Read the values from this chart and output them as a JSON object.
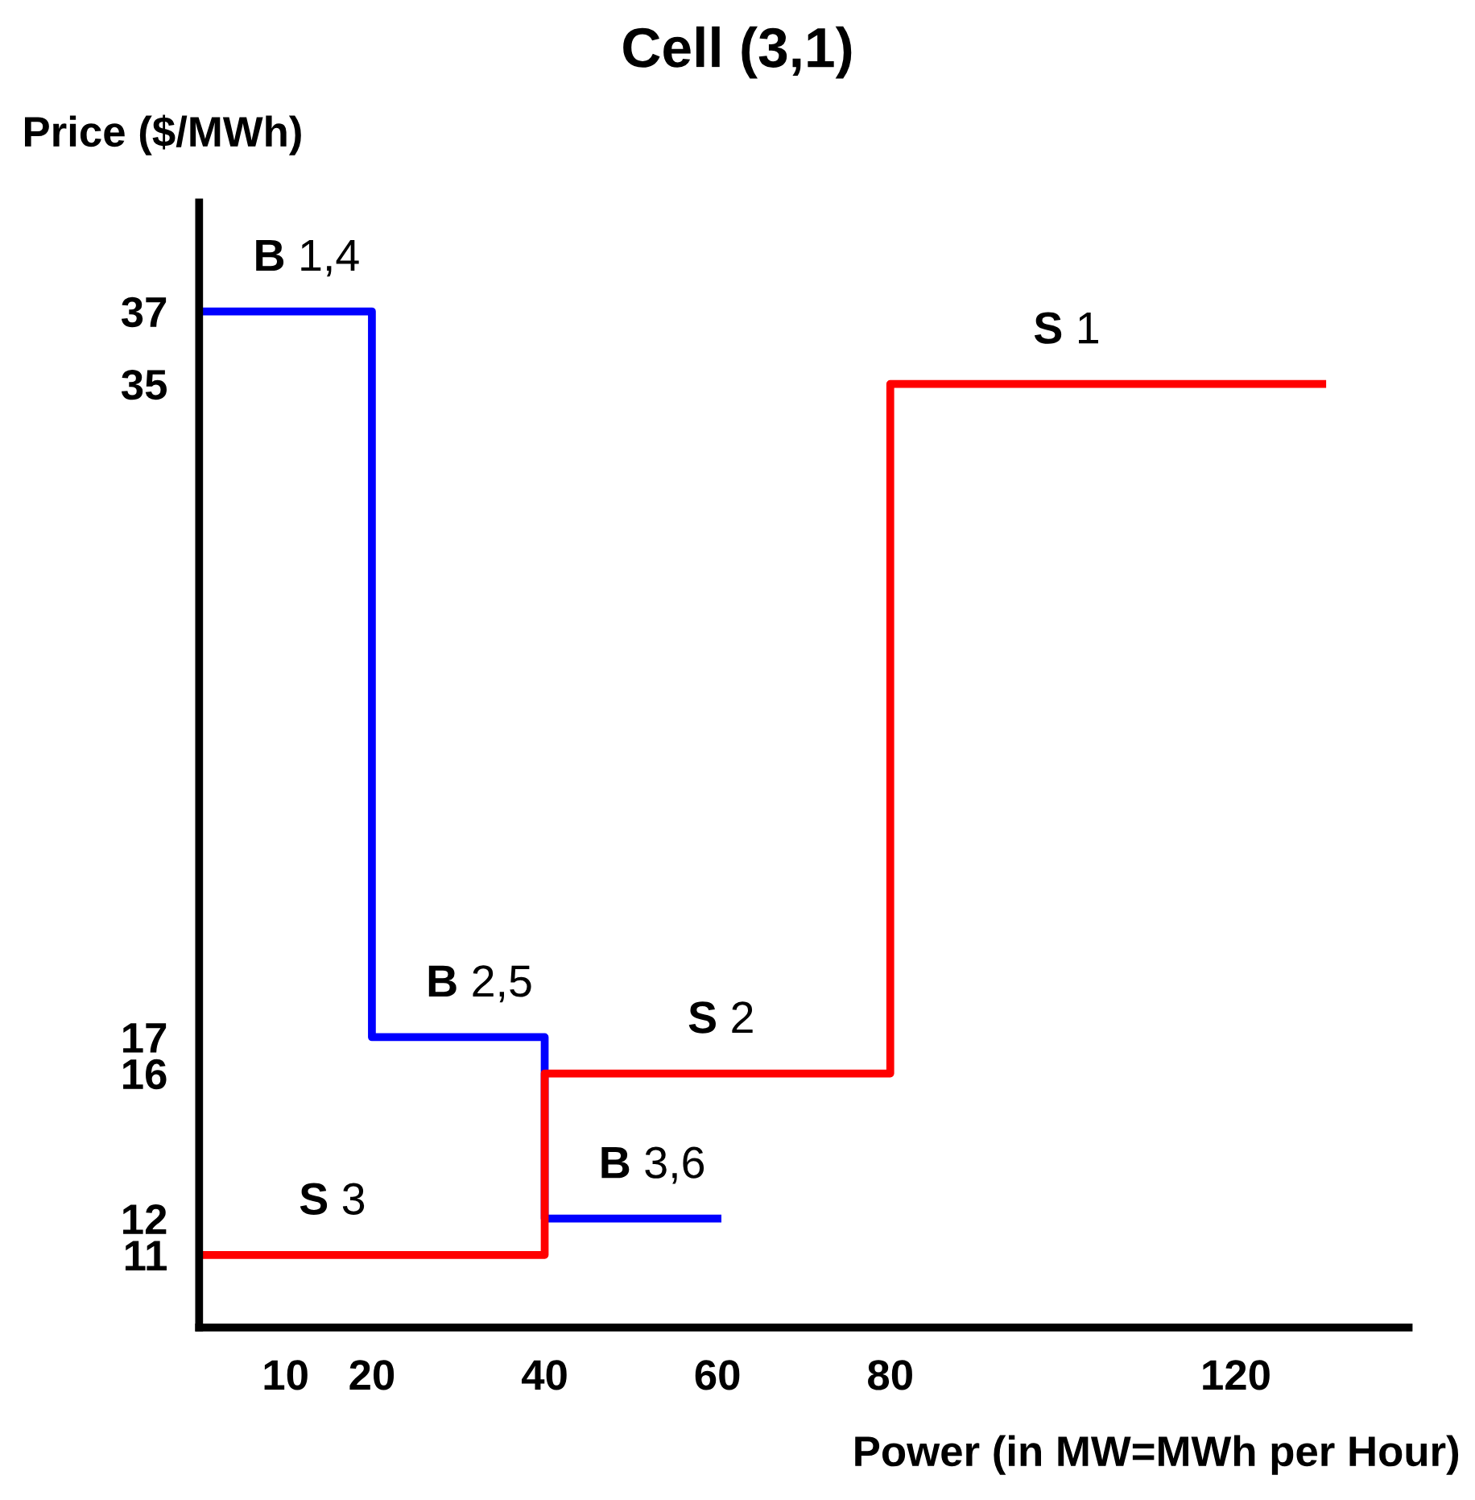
{
  "chart_data": {
    "type": "step",
    "title": "Cell (3,1)",
    "xlabel": "Power (in MW=MWh per Hour)",
    "ylabel": "Price ($/MWh)",
    "series": [
      {
        "color": "#0000ff",
        "x": [
          0,
          20,
          40,
          60
        ],
        "values": [
          37,
          17,
          12,
          12
        ]
      },
      {
        "color": "#ff0000",
        "x": [
          0,
          40,
          80,
          130
        ],
        "values": [
          11,
          16,
          35,
          35
        ]
      }
    ],
    "xlim": [
      0,
      140
    ],
    "xticks": [
      10,
      20,
      40,
      60,
      80,
      120
    ],
    "ylim": [
      9,
      40
    ],
    "yticks": [
      11,
      12,
      16,
      17,
      35,
      37
    ],
    "grid": false,
    "legend": false,
    "annotations": [
      {
        "text": "B 1,4",
        "x": 10,
        "y": 37
      },
      {
        "text": "B 2,5",
        "x": 30,
        "y": 17
      },
      {
        "text": "B 3,6",
        "x": 50,
        "y": 12
      },
      {
        "text": "S 3",
        "x": 15,
        "y": 11
      },
      {
        "text": "S 2",
        "x": 60,
        "y": 16
      },
      {
        "text": "S 1",
        "x": 100,
        "y": 35
      }
    ]
  }
}
